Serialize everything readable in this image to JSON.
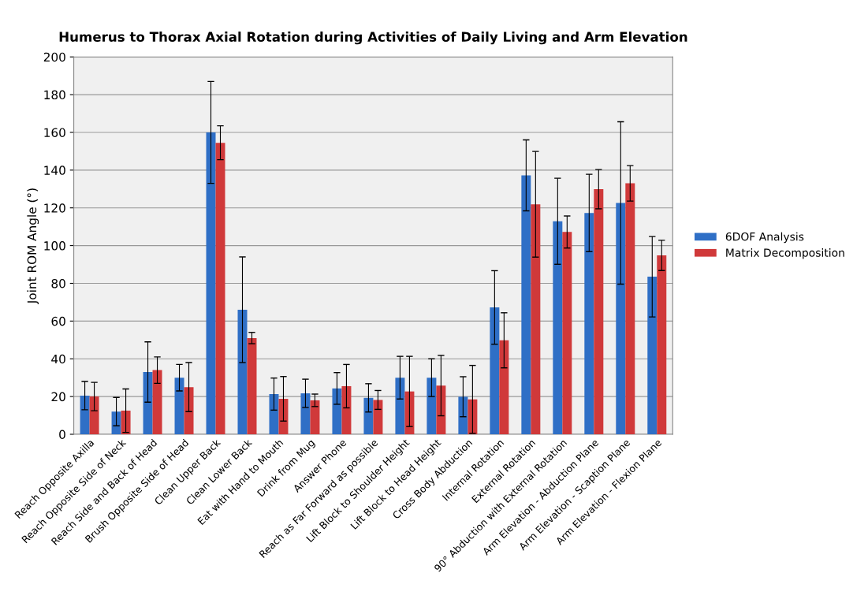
{
  "chart_data": {
    "type": "bar",
    "title": "Humerus to Thorax Axial Rotation during Activities of Daily Living and Arm Elevation",
    "ylabel": "Joint ROM Angle (°)",
    "categories": [
      "Reach Opposite Axilla",
      "Reach Opposite Side of Neck",
      "Reach Side and Back of Head",
      "Brush Opposite Side of Head",
      "Clean Upper Back",
      "Clean Lower Back",
      "Eat with Hand to Mouth",
      "Drink from Mug",
      "Answer Phone",
      "Reach as Far Forward as possible",
      "Lift Block to Shoulder Height",
      "Lift Block to Head Height",
      "Cross Body Abduction",
      "Internal Rotation",
      "External Rotation",
      "90° Abduction with External Rotation",
      "Arm Elevation - Abduction Plane",
      "Arm Elevation - Scaption Plane",
      "Arm Elevation - Flexion Plane"
    ],
    "series": [
      {
        "name": "6DOF Analysis",
        "color": "#2f6fc6",
        "values": [
          20.5,
          12,
          33,
          30,
          160,
          66,
          21.3,
          21.7,
          24.3,
          19.3,
          30,
          30,
          19.9,
          67.2,
          137.2,
          112.9,
          117.3,
          122.6,
          83.5
        ],
        "errors": [
          7.5,
          7.5,
          16,
          7,
          27,
          28,
          8.5,
          7.5,
          8.4,
          7.5,
          11.3,
          10,
          10.6,
          19.5,
          18.8,
          22.8,
          20.5,
          43,
          21.3
        ]
      },
      {
        "name": "Matrix Decomposition",
        "color": "#d0393a",
        "values": [
          20,
          12.5,
          34,
          25,
          154.5,
          51,
          18.8,
          18,
          25.5,
          18.2,
          22.7,
          25.8,
          18.5,
          49.8,
          121.9,
          107.2,
          129.9,
          133,
          94.8
        ],
        "errors": [
          7.5,
          11.5,
          7,
          13,
          9,
          3,
          11.8,
          3.3,
          11.5,
          5,
          18.6,
          16,
          18,
          14.6,
          28,
          8.5,
          10.4,
          9.4,
          8
        ]
      }
    ],
    "ylim": [
      0,
      200
    ],
    "yticks": [
      0,
      20,
      40,
      60,
      80,
      100,
      120,
      140,
      160,
      180,
      200
    ],
    "grid": "y",
    "legend": "right"
  }
}
